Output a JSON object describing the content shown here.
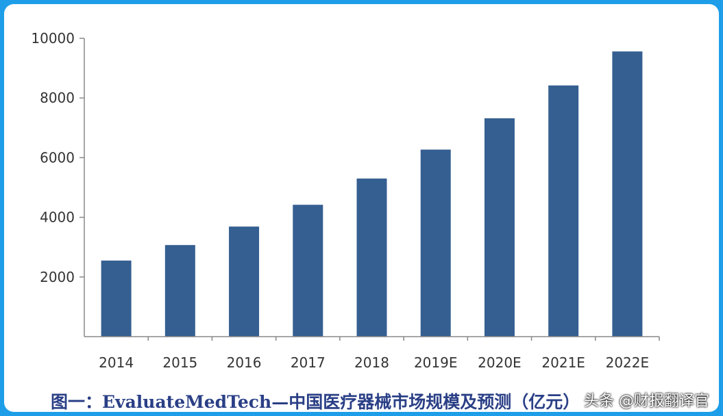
{
  "chart_data": {
    "type": "bar",
    "categories": [
      "2014",
      "2015",
      "2016",
      "2017",
      "2018",
      "2019E",
      "2020E",
      "2021E",
      "2022E"
    ],
    "values": [
      2550,
      3070,
      3690,
      4420,
      5300,
      6270,
      7320,
      8420,
      9560
    ],
    "yticks": [
      2000,
      4000,
      6000,
      8000,
      10000
    ],
    "ylim": [
      0,
      10000
    ],
    "bar_color": "#355f91",
    "grid": false,
    "legend": "none"
  },
  "caption": "图一：EvaluateMedTech—中国医疗器械市场规模及预测（亿元）",
  "watermark": "头条 @财报翻译官",
  "colors": {
    "frame_border": "#1e9ee8",
    "caption": "#2a3f86"
  }
}
